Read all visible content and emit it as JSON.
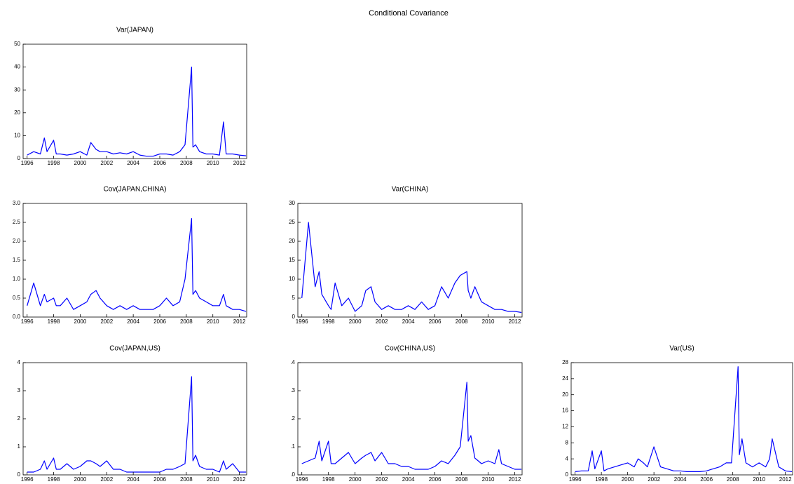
{
  "title": "Conditional Covariance",
  "chart_data": [
    {
      "type": "line",
      "title": "Var(JAPAN)",
      "color": "#0000ff",
      "xlim": [
        1995.7,
        2012.55
      ],
      "xticks": [
        1996,
        1998,
        2000,
        2002,
        2004,
        2006,
        2008,
        2010,
        2012
      ],
      "ylim": [
        0,
        50
      ],
      "yticks": [
        0,
        10,
        20,
        30,
        40,
        50
      ],
      "x": [
        1996.0,
        1996.5,
        1997.0,
        1997.3,
        1997.5,
        1998.0,
        1998.2,
        1998.5,
        1999.0,
        1999.5,
        2000.0,
        2000.5,
        2000.8,
        2001.2,
        2001.5,
        2002.0,
        2002.5,
        2003.0,
        2003.5,
        2004.0,
        2004.5,
        2005.0,
        2005.5,
        2006.0,
        2006.5,
        2007.0,
        2007.5,
        2007.9,
        2008.4,
        2008.5,
        2008.7,
        2009.0,
        2009.5,
        2010.0,
        2010.5,
        2010.8,
        2011.0,
        2011.5,
        2012.0,
        2012.5
      ],
      "values": [
        1.5,
        3,
        2,
        9,
        3,
        8,
        2,
        2,
        1.5,
        2,
        3,
        1.5,
        7,
        4,
        3,
        3,
        2,
        2.5,
        2,
        3,
        1.5,
        1,
        1,
        2,
        2,
        1.5,
        3,
        6,
        40,
        5,
        6,
        3,
        2,
        2,
        1.5,
        16,
        2,
        2,
        1.5,
        1.2
      ]
    },
    {
      "type": "line",
      "title": "Cov(JAPAN,CHINA)",
      "color": "#0000ff",
      "xlim": [
        1995.7,
        2012.55
      ],
      "xticks": [
        1996,
        1998,
        2000,
        2002,
        2004,
        2006,
        2008,
        2010,
        2012
      ],
      "ylim": [
        0,
        3
      ],
      "yticks": [
        {
          "value": 0,
          "label": "0.0"
        },
        0.5,
        {
          "value": 1,
          "label": "1.0"
        },
        1.5,
        {
          "value": 2,
          "label": "2.0"
        },
        2.5,
        {
          "value": 3,
          "label": "3.0"
        }
      ],
      "x": [
        1996.0,
        1996.5,
        1997.0,
        1997.3,
        1997.5,
        1998.0,
        1998.2,
        1998.5,
        1999.0,
        1999.5,
        2000.0,
        2000.5,
        2000.8,
        2001.2,
        2001.5,
        2002.0,
        2002.5,
        2003.0,
        2003.5,
        2004.0,
        2004.5,
        2005.0,
        2005.5,
        2006.0,
        2006.5,
        2007.0,
        2007.5,
        2007.9,
        2008.4,
        2008.5,
        2008.7,
        2009.0,
        2009.5,
        2010.0,
        2010.5,
        2010.8,
        2011.0,
        2011.5,
        2012.0,
        2012.5
      ],
      "values": [
        0.3,
        0.9,
        0.3,
        0.6,
        0.4,
        0.5,
        0.3,
        0.3,
        0.5,
        0.2,
        0.3,
        0.4,
        0.6,
        0.7,
        0.5,
        0.3,
        0.2,
        0.3,
        0.2,
        0.3,
        0.2,
        0.2,
        0.2,
        0.3,
        0.5,
        0.3,
        0.4,
        1.0,
        2.6,
        0.6,
        0.7,
        0.5,
        0.4,
        0.3,
        0.3,
        0.6,
        0.3,
        0.2,
        0.2,
        0.15
      ]
    },
    {
      "type": "line",
      "title": "Var(CHINA)",
      "color": "#0000ff",
      "xlim": [
        1995.7,
        2012.55
      ],
      "xticks": [
        1996,
        1998,
        2000,
        2002,
        2004,
        2006,
        2008,
        2010,
        2012
      ],
      "ylim": [
        0,
        30
      ],
      "yticks": [
        0,
        5,
        10,
        15,
        20,
        25,
        30
      ],
      "x": [
        1996.0,
        1996.5,
        1997.0,
        1997.3,
        1997.5,
        1998.0,
        1998.2,
        1998.5,
        1999.0,
        1999.5,
        2000.0,
        2000.5,
        2000.8,
        2001.2,
        2001.5,
        2002.0,
        2002.5,
        2003.0,
        2003.5,
        2004.0,
        2004.5,
        2005.0,
        2005.5,
        2006.0,
        2006.5,
        2007.0,
        2007.5,
        2007.9,
        2008.4,
        2008.5,
        2008.7,
        2009.0,
        2009.5,
        2010.0,
        2010.5,
        2010.8,
        2011.0,
        2011.5,
        2012.0,
        2012.5
      ],
      "values": [
        5,
        25,
        8,
        12,
        6,
        3,
        2,
        9,
        3,
        5,
        1.5,
        3,
        7,
        8,
        4,
        2,
        3,
        2,
        2,
        3,
        2,
        4,
        2,
        3,
        8,
        5,
        9,
        11,
        12,
        7,
        5,
        8,
        4,
        3,
        2,
        2,
        2,
        1.5,
        1.5,
        1.2
      ]
    },
    {
      "type": "line",
      "title": "Cov(JAPAN,US)",
      "color": "#0000ff",
      "xlim": [
        1995.7,
        2012.55
      ],
      "xticks": [
        1996,
        1998,
        2000,
        2002,
        2004,
        2006,
        2008,
        2010,
        2012
      ],
      "ylim": [
        0,
        4
      ],
      "yticks": [
        0,
        1,
        2,
        3,
        4
      ],
      "x": [
        1996.0,
        1996.5,
        1997.0,
        1997.3,
        1997.5,
        1998.0,
        1998.2,
        1998.5,
        1999.0,
        1999.5,
        2000.0,
        2000.5,
        2000.8,
        2001.2,
        2001.5,
        2002.0,
        2002.5,
        2003.0,
        2003.5,
        2004.0,
        2004.5,
        2005.0,
        2005.5,
        2006.0,
        2006.5,
        2007.0,
        2007.5,
        2007.9,
        2008.4,
        2008.5,
        2008.7,
        2009.0,
        2009.5,
        2010.0,
        2010.5,
        2010.8,
        2011.0,
        2011.5,
        2012.0,
        2012.5
      ],
      "values": [
        0.1,
        0.1,
        0.2,
        0.5,
        0.2,
        0.6,
        0.2,
        0.2,
        0.4,
        0.2,
        0.3,
        0.5,
        0.5,
        0.4,
        0.3,
        0.5,
        0.2,
        0.2,
        0.1,
        0.1,
        0.1,
        0.1,
        0.1,
        0.1,
        0.2,
        0.2,
        0.3,
        0.4,
        3.5,
        0.5,
        0.7,
        0.3,
        0.2,
        0.2,
        0.1,
        0.5,
        0.2,
        0.4,
        0.1,
        0.1
      ]
    },
    {
      "type": "line",
      "title": "Cov(CHINA,US)",
      "color": "#0000ff",
      "xlim": [
        1995.7,
        2012.55
      ],
      "xticks": [
        1996,
        1998,
        2000,
        2002,
        2004,
        2006,
        2008,
        2010,
        2012
      ],
      "ylim": [
        0,
        0.4
      ],
      "yticks": [
        {
          "value": 0,
          "label": ".0"
        },
        {
          "value": 0.1,
          "label": ".1"
        },
        {
          "value": 0.2,
          "label": ".2"
        },
        {
          "value": 0.3,
          "label": ".3"
        },
        {
          "value": 0.4,
          "label": ".4"
        }
      ],
      "x": [
        1996.0,
        1996.5,
        1997.0,
        1997.3,
        1997.5,
        1998.0,
        1998.2,
        1998.5,
        1999.0,
        1999.5,
        2000.0,
        2000.5,
        2000.8,
        2001.2,
        2001.5,
        2002.0,
        2002.5,
        2003.0,
        2003.5,
        2004.0,
        2004.5,
        2005.0,
        2005.5,
        2006.0,
        2006.5,
        2007.0,
        2007.5,
        2007.9,
        2008.4,
        2008.5,
        2008.7,
        2009.0,
        2009.5,
        2010.0,
        2010.5,
        2010.8,
        2011.0,
        2011.5,
        2012.0,
        2012.5
      ],
      "values": [
        0.04,
        0.05,
        0.06,
        0.12,
        0.05,
        0.12,
        0.04,
        0.04,
        0.06,
        0.08,
        0.04,
        0.06,
        0.07,
        0.08,
        0.05,
        0.08,
        0.04,
        0.04,
        0.03,
        0.03,
        0.02,
        0.02,
        0.02,
        0.03,
        0.05,
        0.04,
        0.07,
        0.1,
        0.33,
        0.12,
        0.14,
        0.06,
        0.04,
        0.05,
        0.04,
        0.09,
        0.04,
        0.03,
        0.02,
        0.02
      ]
    },
    {
      "type": "line",
      "title": "Var(US)",
      "color": "#0000ff",
      "xlim": [
        1995.7,
        2012.55
      ],
      "xticks": [
        1996,
        1998,
        2000,
        2002,
        2004,
        2006,
        2008,
        2010,
        2012
      ],
      "ylim": [
        0,
        28
      ],
      "yticks": [
        0,
        4,
        8,
        12,
        16,
        20,
        24,
        28
      ],
      "x": [
        1996.0,
        1996.5,
        1997.0,
        1997.3,
        1997.5,
        1998.0,
        1998.2,
        1998.5,
        1999.0,
        1999.5,
        2000.0,
        2000.5,
        2000.8,
        2001.2,
        2001.5,
        2002.0,
        2002.5,
        2003.0,
        2003.5,
        2004.0,
        2004.5,
        2005.0,
        2005.5,
        2006.0,
        2006.5,
        2007.0,
        2007.5,
        2007.9,
        2008.4,
        2008.5,
        2008.7,
        2009.0,
        2009.5,
        2010.0,
        2010.5,
        2010.8,
        2011.0,
        2011.5,
        2012.0,
        2012.5
      ],
      "values": [
        0.8,
        1,
        1,
        6,
        1.5,
        6,
        1,
        1.5,
        2,
        2.5,
        3,
        2,
        4,
        3,
        2,
        7,
        2,
        1.5,
        1,
        1,
        0.8,
        0.8,
        0.8,
        1,
        1.5,
        2,
        3,
        3,
        27,
        5,
        9,
        3,
        2,
        3,
        2,
        4,
        9,
        2,
        1,
        0.8
      ]
    }
  ]
}
